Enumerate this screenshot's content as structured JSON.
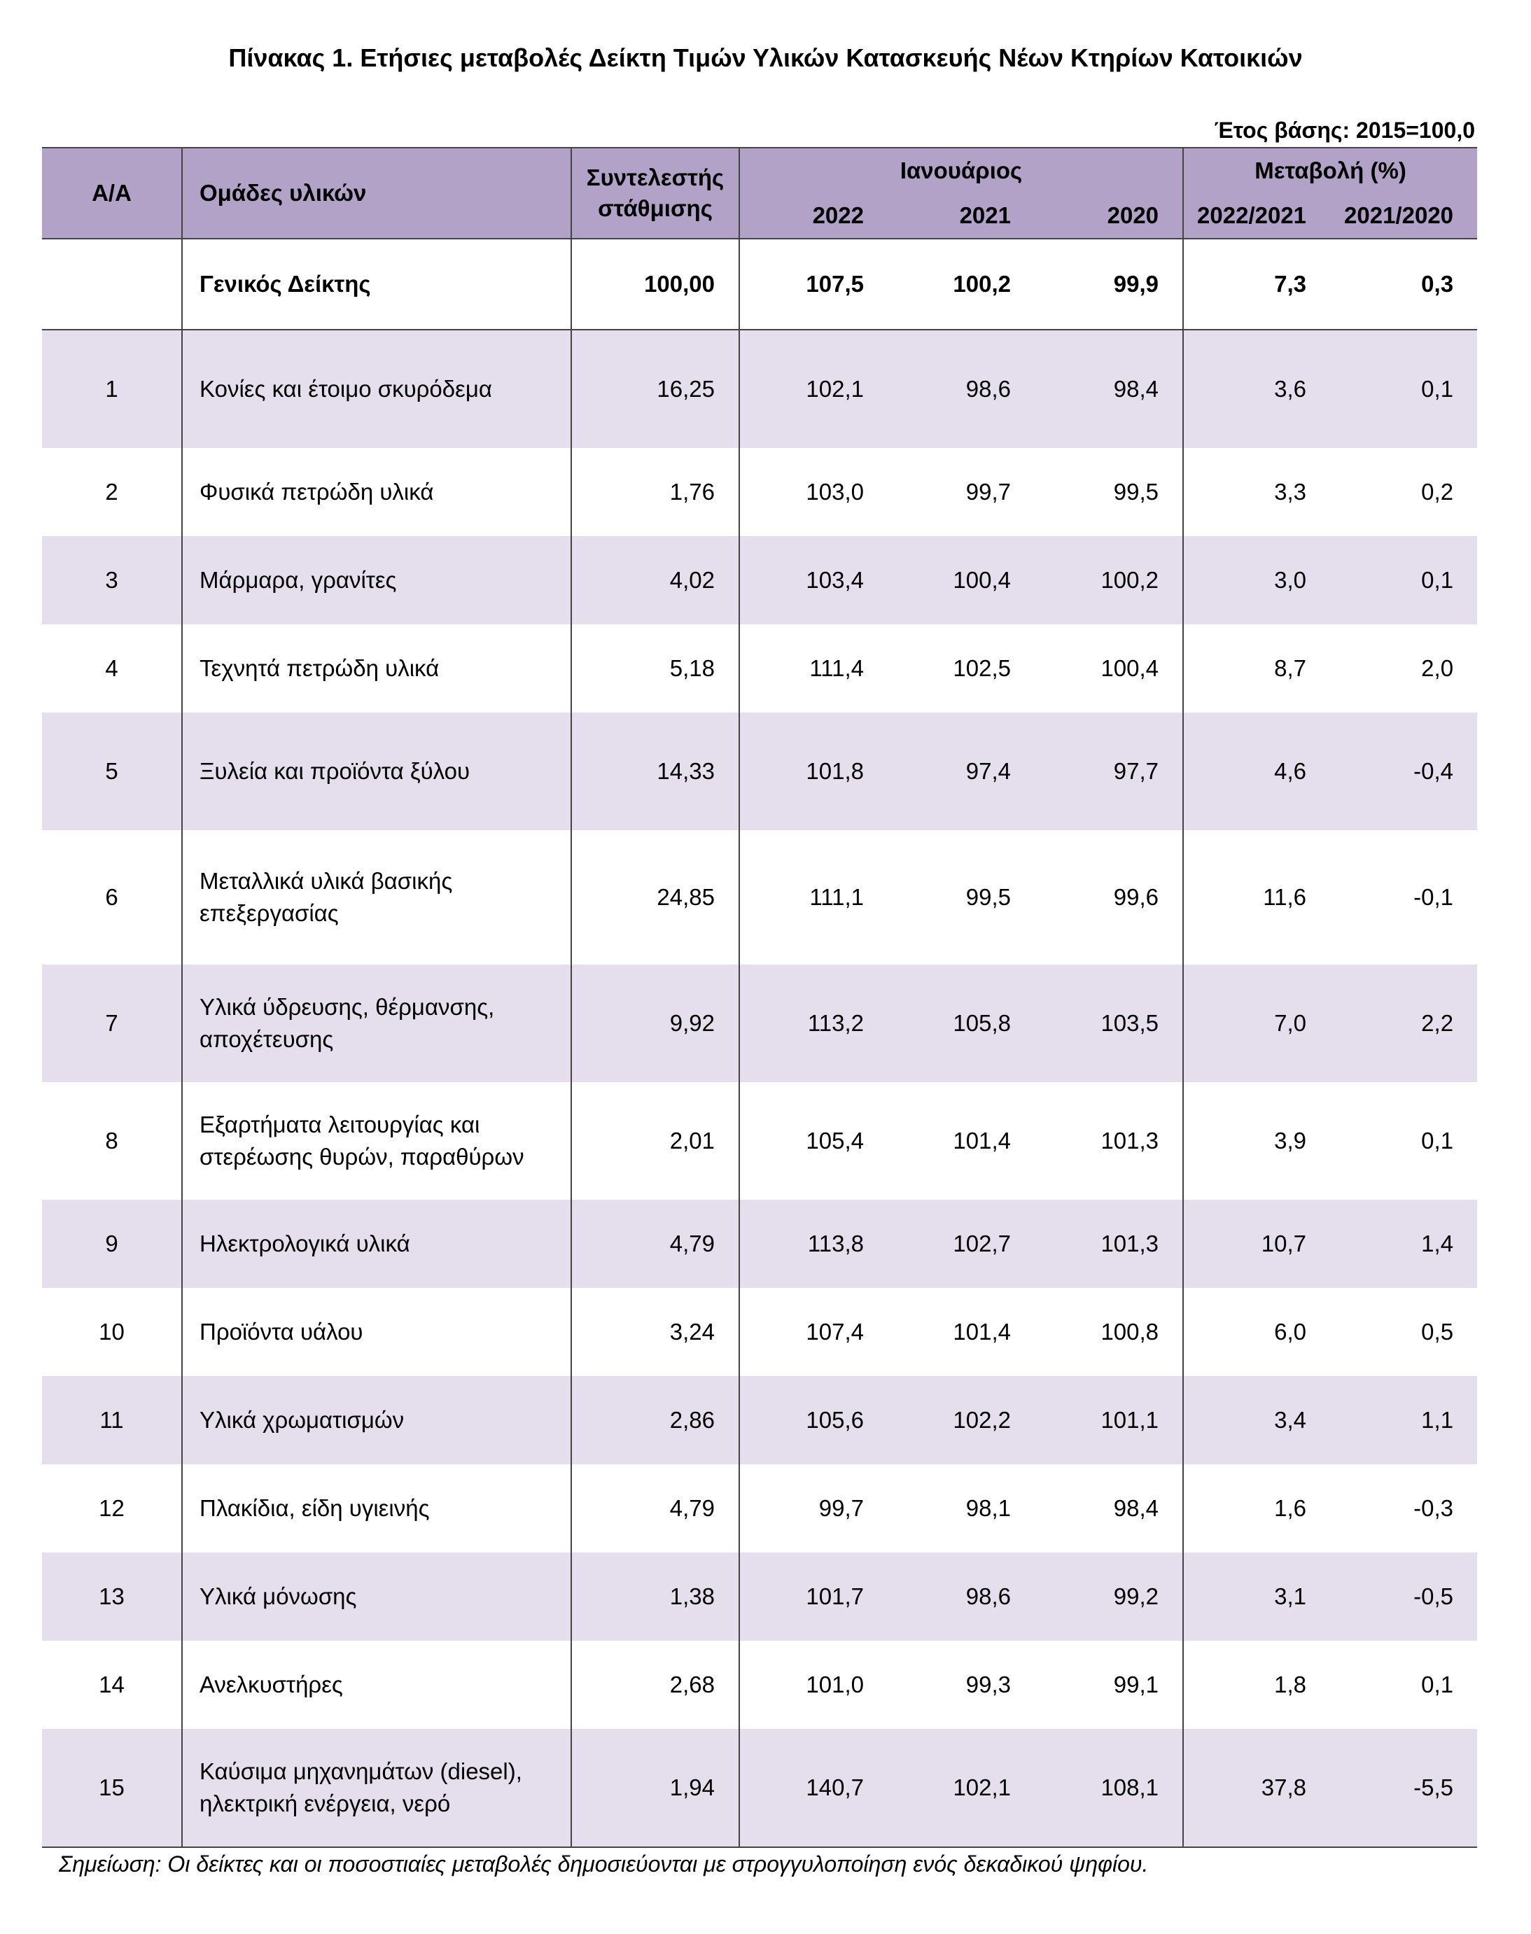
{
  "title": "Πίνακας 1. Ετήσιες μεταβολές Δείκτη Τιμών Υλικών Κατασκευής Νέων Κτηρίων Κατοικιών",
  "base_year": "Έτος  βάσης: 2015=100,0",
  "header": {
    "aa": "Α/Α",
    "groups": "Ομάδες υλικών",
    "weights_line1": "Συντελεστής",
    "weights_line2": "στάθμισης",
    "january": "Ιανουάριος",
    "change": "Μεταβολή (%)",
    "y2022": "2022",
    "y2021": "2021",
    "y2020": "2020",
    "ch1": "2022/2021",
    "ch2": "2021/2020"
  },
  "general": {
    "name": "Γενικός Δείκτης",
    "weight": "100,00",
    "v2022": "107,5",
    "v2021": "100,2",
    "v2020": "99,9",
    "ch1": "7,3",
    "ch2": "0,3"
  },
  "rows": [
    {
      "aa": "1",
      "name1": "Κονίες και έτοιμο σκυρόδεμα",
      "name2": "",
      "weight": "16,25",
      "v2022": "102,1",
      "v2021": "98,6",
      "v2020": "98,4",
      "ch1": "3,6",
      "ch2": "0,1"
    },
    {
      "aa": "2",
      "name1": "Φυσικά πετρώδη υλικά",
      "name2": "",
      "weight": "1,76",
      "v2022": "103,0",
      "v2021": "99,7",
      "v2020": "99,5",
      "ch1": "3,3",
      "ch2": "0,2"
    },
    {
      "aa": "3",
      "name1": "Μάρμαρα, γρανίτες",
      "name2": "",
      "weight": "4,02",
      "v2022": "103,4",
      "v2021": "100,4",
      "v2020": "100,2",
      "ch1": "3,0",
      "ch2": "0,1"
    },
    {
      "aa": "4",
      "name1": "Τεχνητά πετρώδη υλικά",
      "name2": "",
      "weight": "5,18",
      "v2022": "111,4",
      "v2021": "102,5",
      "v2020": "100,4",
      "ch1": "8,7",
      "ch2": "2,0"
    },
    {
      "aa": "5",
      "name1": "Ξυλεία και προϊόντα ξύλου",
      "name2": "",
      "weight": "14,33",
      "v2022": "101,8",
      "v2021": "97,4",
      "v2020": "97,7",
      "ch1": "4,6",
      "ch2": "-0,4"
    },
    {
      "aa": "6",
      "name1": "Μεταλλικά υλικά βασικής",
      "name2": "επεξεργασίας",
      "weight": "24,85",
      "v2022": "111,1",
      "v2021": "99,5",
      "v2020": "99,6",
      "ch1": "11,6",
      "ch2": "-0,1"
    },
    {
      "aa": "7",
      "name1": "Υλικά ύδρευσης, θέρμανσης,",
      "name2": "αποχέτευσης",
      "weight": "9,92",
      "v2022": "113,2",
      "v2021": "105,8",
      "v2020": "103,5",
      "ch1": "7,0",
      "ch2": "2,2"
    },
    {
      "aa": "8",
      "name1": "Εξαρτήματα λειτουργίας και",
      "name2": "στερέωσης θυρών, παραθύρων",
      "weight": "2,01",
      "v2022": "105,4",
      "v2021": "101,4",
      "v2020": "101,3",
      "ch1": "3,9",
      "ch2": "0,1"
    },
    {
      "aa": "9",
      "name1": "Ηλεκτρολογικά υλικά",
      "name2": "",
      "weight": "4,79",
      "v2022": "113,8",
      "v2021": "102,7",
      "v2020": "101,3",
      "ch1": "10,7",
      "ch2": "1,4"
    },
    {
      "aa": "10",
      "name1": "Προϊόντα υάλου",
      "name2": "",
      "weight": "3,24",
      "v2022": "107,4",
      "v2021": "101,4",
      "v2020": "100,8",
      "ch1": "6,0",
      "ch2": "0,5"
    },
    {
      "aa": "11",
      "name1": "Υλικά χρωματισμών",
      "name2": "",
      "weight": "2,86",
      "v2022": "105,6",
      "v2021": "102,2",
      "v2020": "101,1",
      "ch1": "3,4",
      "ch2": "1,1"
    },
    {
      "aa": "12",
      "name1": "Πλακίδια, είδη υγιεινής",
      "name2": "",
      "weight": "4,79",
      "v2022": "99,7",
      "v2021": "98,1",
      "v2020": "98,4",
      "ch1": "1,6",
      "ch2": "-0,3"
    },
    {
      "aa": "13",
      "name1": "Υλικά μόνωσης",
      "name2": "",
      "weight": "1,38",
      "v2022": "101,7",
      "v2021": "98,6",
      "v2020": "99,2",
      "ch1": "3,1",
      "ch2": "-0,5"
    },
    {
      "aa": "14",
      "name1": "Ανελκυστήρες",
      "name2": "",
      "weight": "2,68",
      "v2022": "101,0",
      "v2021": "99,3",
      "v2020": "99,1",
      "ch1": "1,8",
      "ch2": "0,1"
    },
    {
      "aa": "15",
      "name1": "Καύσιμα μηχανημάτων (diesel),",
      "name2": "ηλεκτρική ενέργεια, νερό",
      "weight": "1,94",
      "v2022": "140,7",
      "v2021": "102,1",
      "v2020": "108,1",
      "ch1": "37,8",
      "ch2": "-5,5"
    }
  ],
  "note": "Σημείωση: Οι δείκτες και οι ποσοστιαίες μεταβολές δημοσιεύονται με στρογγυλοποίηση ενός δεκαδικού ψηφίου."
}
